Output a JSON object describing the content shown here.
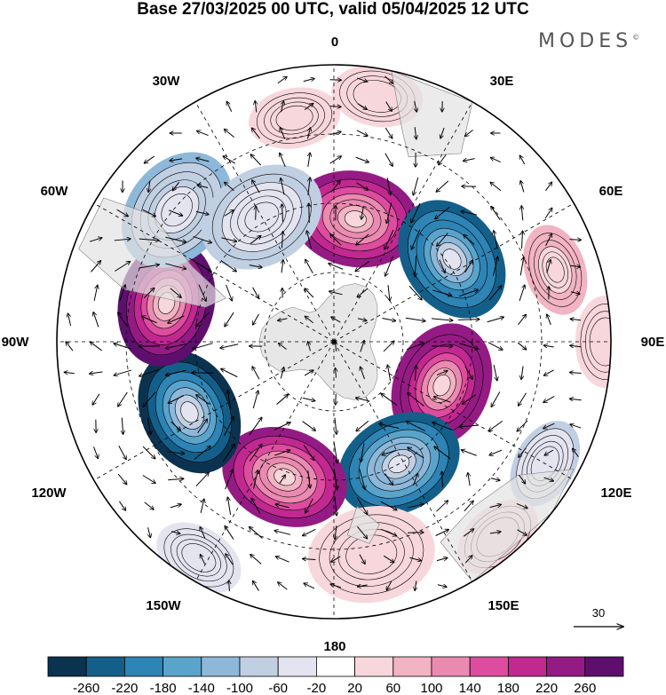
{
  "title": "Base 27/03/2025 00 UTC, valid 05/04/2025 12 UTC",
  "brand": {
    "text": "MODES",
    "mark": "©"
  },
  "map": {
    "projection": "south-polar-stereographic",
    "center": "South Pole",
    "longitude_labels": [
      "0",
      "30E",
      "60E",
      "90E",
      "120E",
      "150E",
      "180",
      "150W",
      "120W",
      "90W",
      "60W",
      "30W"
    ],
    "reference_vector": {
      "label": "30"
    },
    "land_color": "#e6e6e6",
    "ocean_color": "#ffffff"
  },
  "colorbar": {
    "ticks": [
      "-260",
      "-220",
      "-180",
      "-140",
      "-100",
      "-60",
      "-20",
      "20",
      "60",
      "100",
      "140",
      "180",
      "220",
      "260"
    ],
    "colors": [
      "#0b3350",
      "#135f8a",
      "#2d84b5",
      "#5aa4cc",
      "#8db8d9",
      "#c1cfe3",
      "#e3e4ef",
      "#ffffff",
      "#f8d7dc",
      "#f2b3c2",
      "#eb8ab0",
      "#dd4c9e",
      "#c12890",
      "#941b84",
      "#5e0f6e"
    ]
  },
  "anomaly_centers": [
    {
      "lon": 10,
      "colat": 0.45,
      "value": 240
    },
    {
      "lon": 55,
      "colat": 0.52,
      "value": -250
    },
    {
      "lon": 72,
      "colat": 0.84,
      "value": 90
    },
    {
      "lon": 112,
      "colat": 0.42,
      "value": 260
    },
    {
      "lon": 120,
      "colat": 0.88,
      "value": -60
    },
    {
      "lon": 152,
      "colat": 0.5,
      "value": -240
    },
    {
      "lon": -160,
      "colat": 0.52,
      "value": 240
    },
    {
      "lon": -116,
      "colat": 0.58,
      "value": -280
    },
    {
      "lon": -77,
      "colat": 0.62,
      "value": 280
    },
    {
      "lon": -50,
      "colat": 0.74,
      "value": -110
    },
    {
      "lon": -30,
      "colat": 0.52,
      "value": -80
    },
    {
      "lon": -148,
      "colat": 0.92,
      "value": -50
    },
    {
      "lon": 10,
      "colat": 0.9,
      "value": 40
    },
    {
      "lon": -10,
      "colat": 0.82,
      "value": 60
    },
    {
      "lon": 90,
      "colat": 0.98,
      "value": 40
    },
    {
      "lon": 170,
      "colat": 0.78,
      "value": 60
    },
    {
      "lon": 140,
      "colat": 0.92,
      "value": 40
    }
  ]
}
